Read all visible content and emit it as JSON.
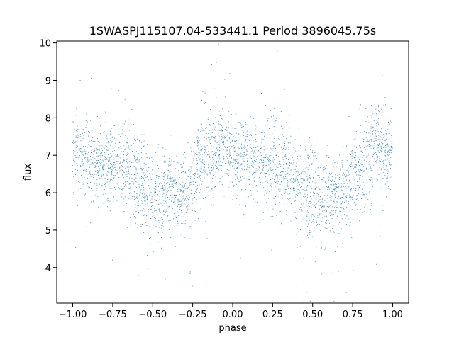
{
  "chart_data": {
    "type": "scatter",
    "title": "1SWASPJ115107.04-533441.1 Period 3896045.75s",
    "xlabel": "phase",
    "ylabel": "flux",
    "xlim": [
      -1.1,
      1.1
    ],
    "ylim": [
      3.05,
      10.05
    ],
    "x_ticks": [
      -1.0,
      -0.75,
      -0.5,
      -0.25,
      0.0,
      0.25,
      0.5,
      0.75,
      1.0
    ],
    "x_tick_labels": [
      "−1.00",
      "−0.75",
      "−0.50",
      "−0.25",
      "0.00",
      "0.25",
      "0.50",
      "0.75",
      "1.00"
    ],
    "y_ticks": [
      4,
      5,
      6,
      7,
      8,
      9,
      10
    ],
    "y_tick_labels": [
      "4",
      "5",
      "6",
      "7",
      "8",
      "9",
      "10"
    ],
    "grid": false,
    "legend": "none",
    "marker_color": "#1f77b4",
    "series": [
      {
        "phase_profile": {
          "x": [
            -1.0,
            -0.9,
            -0.8,
            -0.7,
            -0.6,
            -0.5,
            -0.4,
            -0.3,
            -0.2,
            -0.1,
            0.0,
            0.1,
            0.2,
            0.3,
            0.4,
            0.5,
            0.6,
            0.7,
            0.8,
            0.9,
            1.0
          ],
          "y": [
            7.1,
            6.9,
            6.7,
            6.8,
            6.3,
            5.9,
            6.0,
            6.0,
            6.8,
            7.3,
            7.0,
            6.9,
            6.8,
            6.7,
            6.3,
            5.9,
            5.9,
            6.0,
            6.7,
            7.3,
            7.0
          ],
          "spread": [
            0.5,
            0.5,
            0.5,
            0.6,
            0.6,
            0.6,
            0.5,
            0.5,
            0.6,
            0.6,
            0.5,
            0.5,
            0.5,
            0.6,
            0.6,
            0.6,
            0.5,
            0.5,
            0.6,
            0.6,
            0.5
          ]
        }
      }
    ]
  }
}
